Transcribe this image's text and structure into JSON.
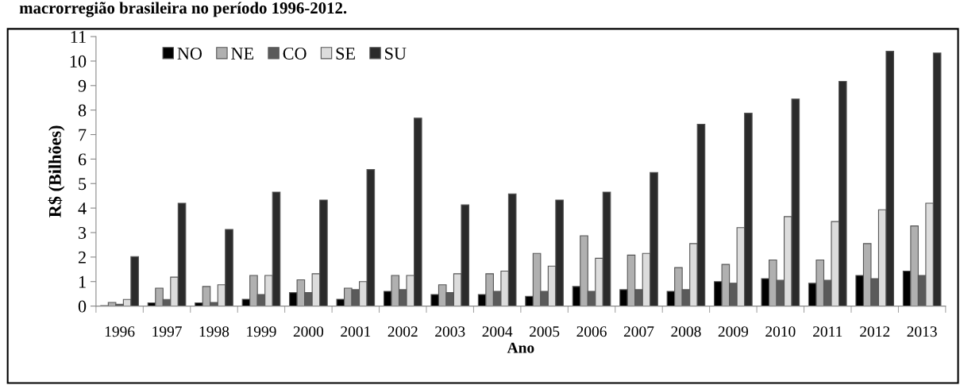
{
  "chart_data": {
    "type": "bar",
    "title": "macrorregião brasileira no período 1996-2012.",
    "xlabel": "Ano",
    "ylabel": "R$ (Bilhões)",
    "categories": [
      "1996",
      "1997",
      "1998",
      "1999",
      "2000",
      "2001",
      "2002",
      "2003",
      "2004",
      "2005",
      "2006",
      "2007",
      "2008",
      "2009",
      "2010",
      "2011",
      "2012",
      "2013"
    ],
    "series": [
      {
        "name": "NO",
        "color": "#000000",
        "values": [
          0.02,
          0.13,
          0.13,
          0.28,
          0.55,
          0.28,
          0.6,
          0.47,
          0.47,
          0.4,
          0.8,
          0.67,
          0.6,
          1.0,
          1.12,
          0.93,
          1.25,
          1.43
        ]
      },
      {
        "name": "NE",
        "color": "#b0b0b0",
        "values": [
          0.15,
          0.73,
          0.8,
          1.25,
          1.07,
          0.73,
          1.25,
          0.87,
          1.32,
          2.15,
          2.87,
          2.08,
          1.57,
          1.7,
          1.88,
          1.88,
          2.55,
          3.27
        ]
      },
      {
        "name": "CO",
        "color": "#5a5a5a",
        "values": [
          0.07,
          0.27,
          0.15,
          0.47,
          0.55,
          0.67,
          0.67,
          0.55,
          0.6,
          0.6,
          0.6,
          0.67,
          0.67,
          0.93,
          1.05,
          1.05,
          1.12,
          1.25
        ]
      },
      {
        "name": "SE",
        "color": "#dcdcdc",
        "values": [
          0.27,
          1.18,
          0.87,
          1.25,
          1.32,
          1.0,
          1.25,
          1.32,
          1.43,
          1.63,
          1.95,
          2.15,
          2.55,
          3.2,
          3.65,
          3.45,
          3.93,
          4.2
        ]
      },
      {
        "name": "SU",
        "color": "#2b2b2b",
        "values": [
          2.02,
          4.2,
          3.13,
          4.65,
          4.33,
          5.57,
          7.67,
          4.13,
          4.58,
          4.33,
          4.65,
          5.45,
          7.42,
          7.87,
          8.45,
          9.17,
          10.4,
          10.33
        ]
      }
    ],
    "ylim": [
      0,
      11
    ],
    "yticks": [
      0,
      1,
      2,
      3,
      4,
      5,
      6,
      7,
      8,
      9,
      10,
      11
    ],
    "grid": false,
    "legend": "top left"
  }
}
